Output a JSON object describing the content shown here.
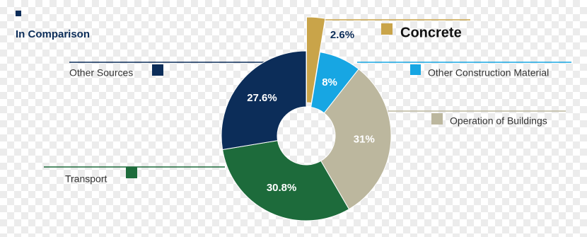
{
  "chart_data": {
    "type": "donut",
    "title": "In Comparison",
    "categories": [
      "Concrete",
      "Other Construction Material",
      "Operation of Buildings",
      "Transport",
      "Other Sources"
    ],
    "values": [
      2.6,
      8,
      31,
      30.8,
      27.6
    ],
    "value_labels": [
      "2.6%",
      "8%",
      "31%",
      "30.8%",
      "27.6%"
    ],
    "colors": [
      "#c9a449",
      "#17a6e3",
      "#bcb79e",
      "#1d6b3b",
      "#0c2d59"
    ]
  }
}
